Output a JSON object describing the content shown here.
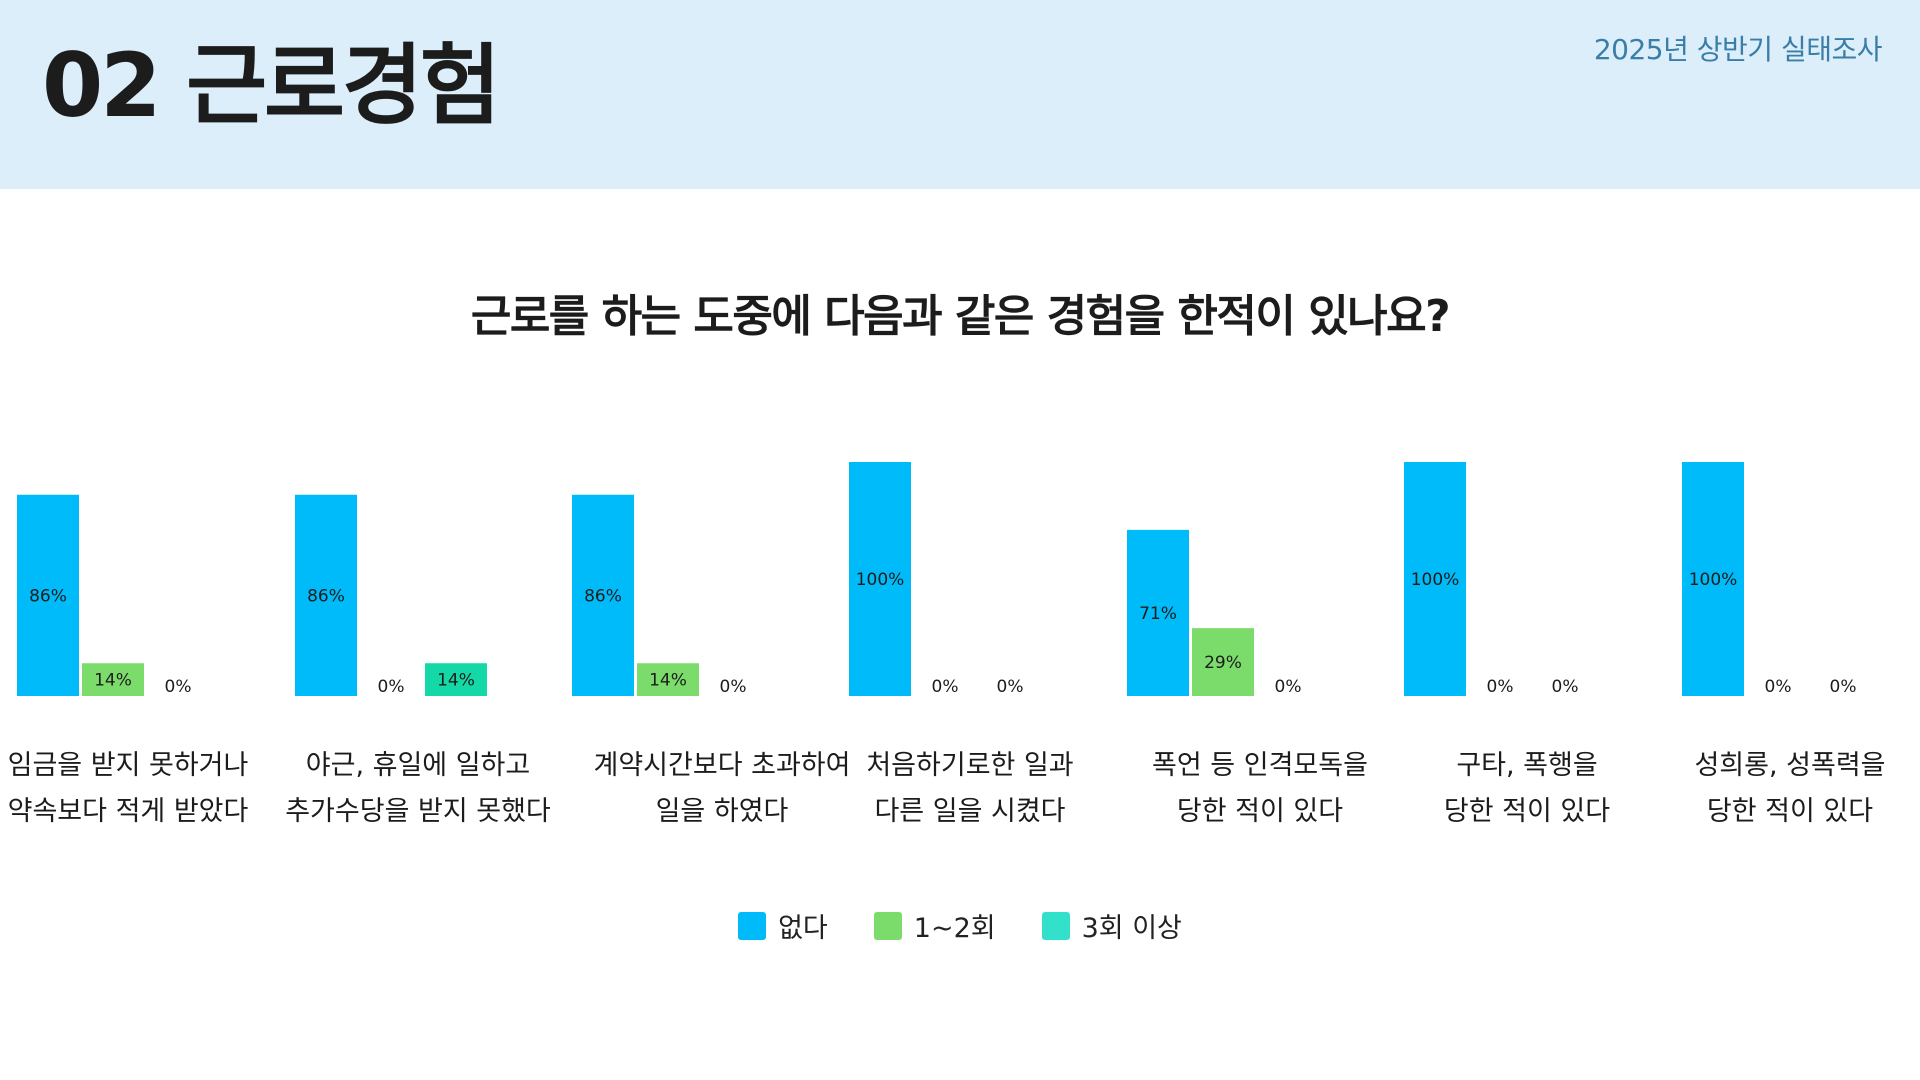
{
  "header": {
    "title": "02 근로경험",
    "survey_label": "2025년 상반기 실태조사"
  },
  "colors": {
    "header_bg": "#dbeef9",
    "none": "#00bbf9",
    "once_twice": "#7bdc6c",
    "three_plus": "#14d8a6",
    "three_plus_legend": "#33e0cc"
  },
  "chart_data": {
    "type": "bar",
    "title": "근로를 하는 도중에 다음과 같은 경험을 한적이 있나요?",
    "unit": "%",
    "categories": [
      [
        "임금을 받지 못하거나",
        "약속보다 적게 받았다"
      ],
      [
        "야근, 휴일에 일하고",
        "추가수당을 받지 못했다"
      ],
      [
        "계약시간보다 초과하여",
        "일을 하였다"
      ],
      [
        "처음하기로한 일과",
        "다른 일을 시켰다"
      ],
      [
        "폭언 등 인격모독을",
        "당한 적이 있다"
      ],
      [
        "구타, 폭행을",
        "당한 적이 있다"
      ],
      [
        "성희롱, 성폭력을",
        "당한 적이 있다"
      ]
    ],
    "series": [
      {
        "name": "없다",
        "values": [
          86,
          86,
          86,
          100,
          71,
          100,
          100
        ]
      },
      {
        "name": "1~2회",
        "values": [
          14,
          0,
          14,
          0,
          29,
          0,
          0
        ]
      },
      {
        "name": "3회 이상",
        "values": [
          0,
          14,
          0,
          0,
          0,
          0,
          0
        ]
      }
    ],
    "ylim": [
      0,
      100
    ],
    "legend": [
      "없다",
      "1~2회",
      "3회 이상"
    ],
    "legend_position": "bottom-center",
    "grid": false
  }
}
